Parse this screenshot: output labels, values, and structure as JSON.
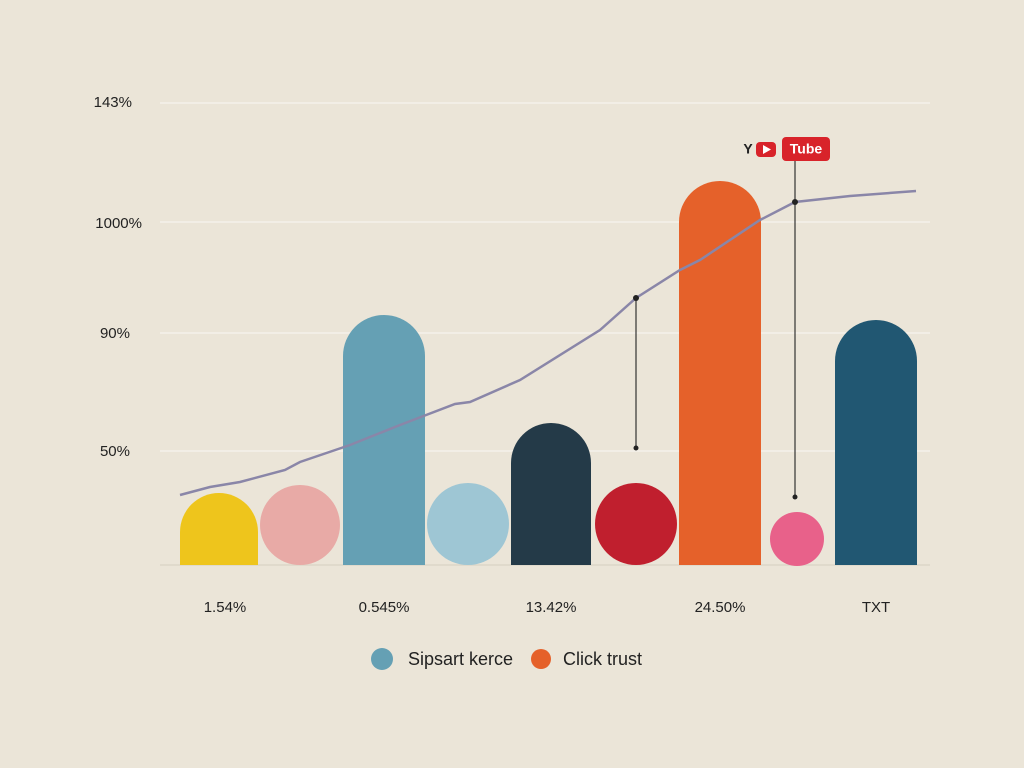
{
  "y_labels": [
    "143%",
    "1000%",
    "90%",
    "50%"
  ],
  "x_labels": [
    "1.54%",
    "0.545%",
    "13.42%",
    "24.50%",
    "TXT"
  ],
  "legend": [
    "Sipsart kerce",
    "Click trust"
  ],
  "badge": {
    "letter": "Y",
    "text": "Tube"
  }
}
